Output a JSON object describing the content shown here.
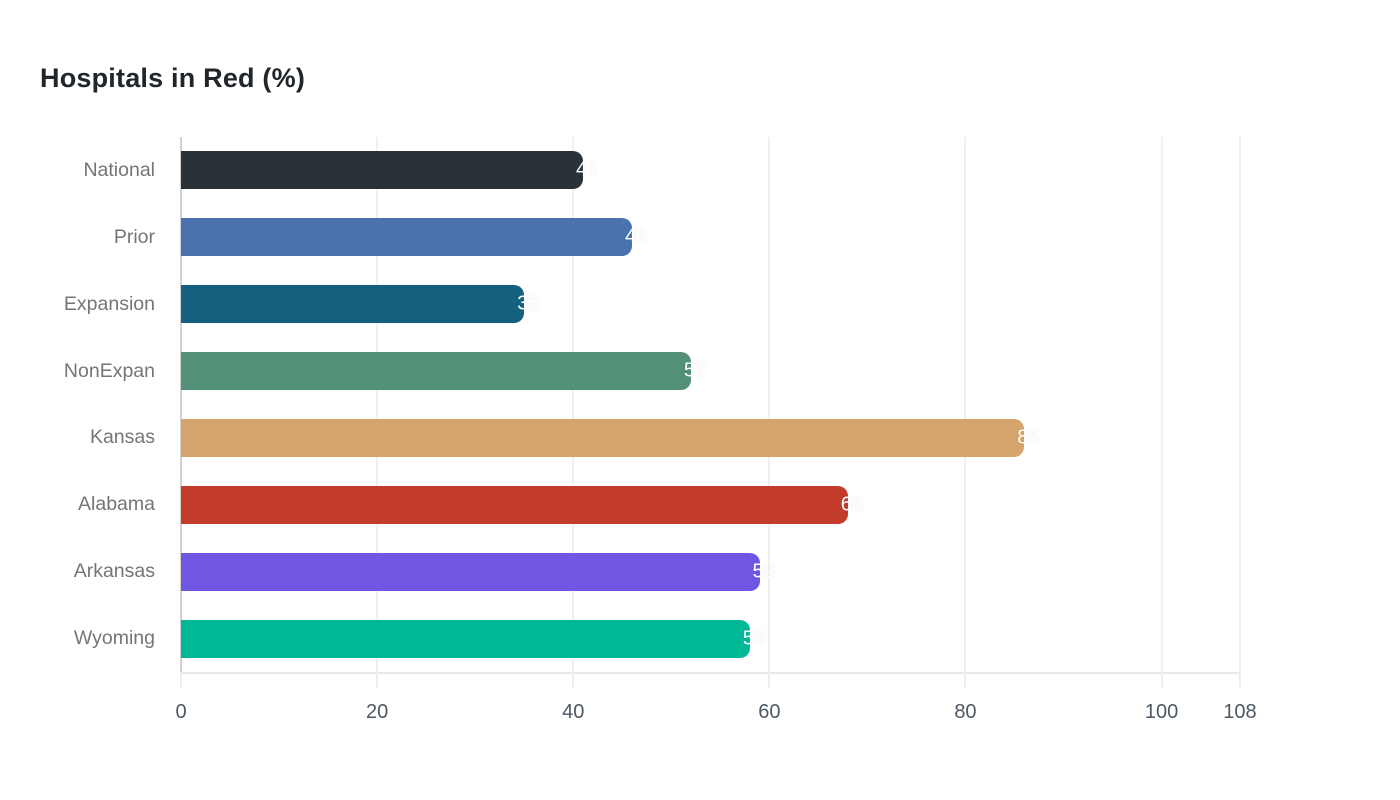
{
  "title": "Hospitals in Red (%)",
  "chart_data": {
    "type": "bar",
    "orientation": "horizontal",
    "title": "Hospitals in Red (%)",
    "xlabel": "",
    "ylabel": "",
    "categories": [
      "National",
      "Prior",
      "Expansion",
      "NonExpan",
      "Kansas",
      "Alabama",
      "Arkansas",
      "Wyoming"
    ],
    "values": [
      41,
      46,
      35,
      52,
      86,
      68,
      59,
      58
    ],
    "bar_colors": [
      "#2b3237",
      "#4a73ad",
      "#15607f",
      "#529078",
      "#d4a46c",
      "#c33b2a",
      "#7056e3",
      "#00b896"
    ],
    "value_label_color": "#ffffff",
    "xlim": [
      0,
      108
    ],
    "x_ticks": [
      0,
      20,
      40,
      60,
      80,
      100,
      108
    ],
    "grid": true,
    "legend_position": "none",
    "background_color": "#ffffff",
    "gridline_color": "#f0f0f0",
    "axis_line_color": "#d2d2d2",
    "category_label_color": "#757575",
    "tick_label_color": "#4d5863"
  }
}
